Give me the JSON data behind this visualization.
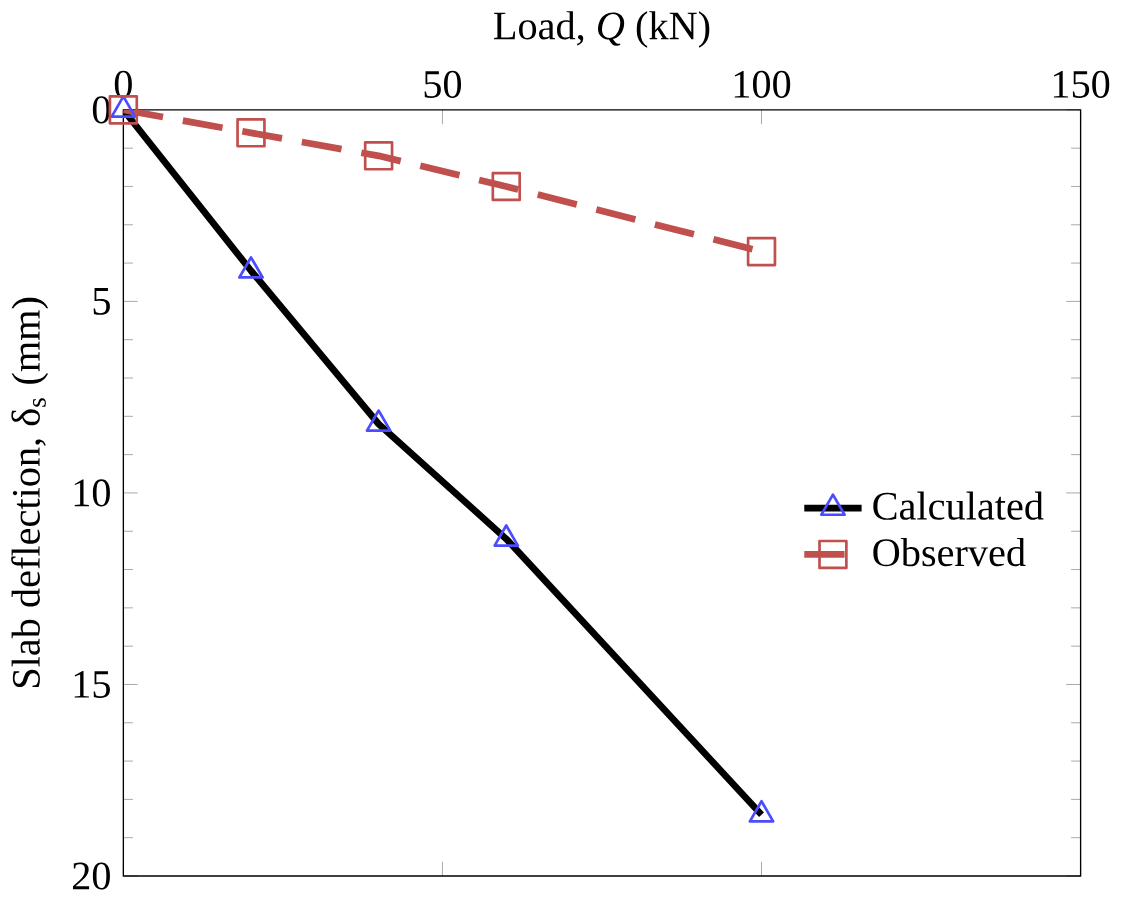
{
  "chart_data": {
    "type": "line",
    "xlabel": "Load, *Q* (kN)",
    "ylabel": "Slab deflection, δ$_{s}$ (mm)",
    "xlim": [
      0,
      150
    ],
    "xticks": [
      0,
      50,
      100,
      150
    ],
    "ylim": [
      20,
      0
    ],
    "yticks": [
      0,
      5,
      10,
      15,
      20
    ],
    "x": [
      0,
      20,
      40,
      60,
      100
    ],
    "series": [
      {
        "name": "Calculated",
        "color": "#000000",
        "marker": "triangle",
        "line_style": "solid",
        "values": [
          0,
          4.2,
          8.2,
          11.2,
          18.4
        ]
      },
      {
        "name": "Observed",
        "color": "#c0504d",
        "marker": "square",
        "line_style": "dashed",
        "values": [
          0,
          0.6,
          1.2,
          2.0,
          3.7
        ]
      }
    ],
    "grid": false,
    "legend": "right"
  }
}
